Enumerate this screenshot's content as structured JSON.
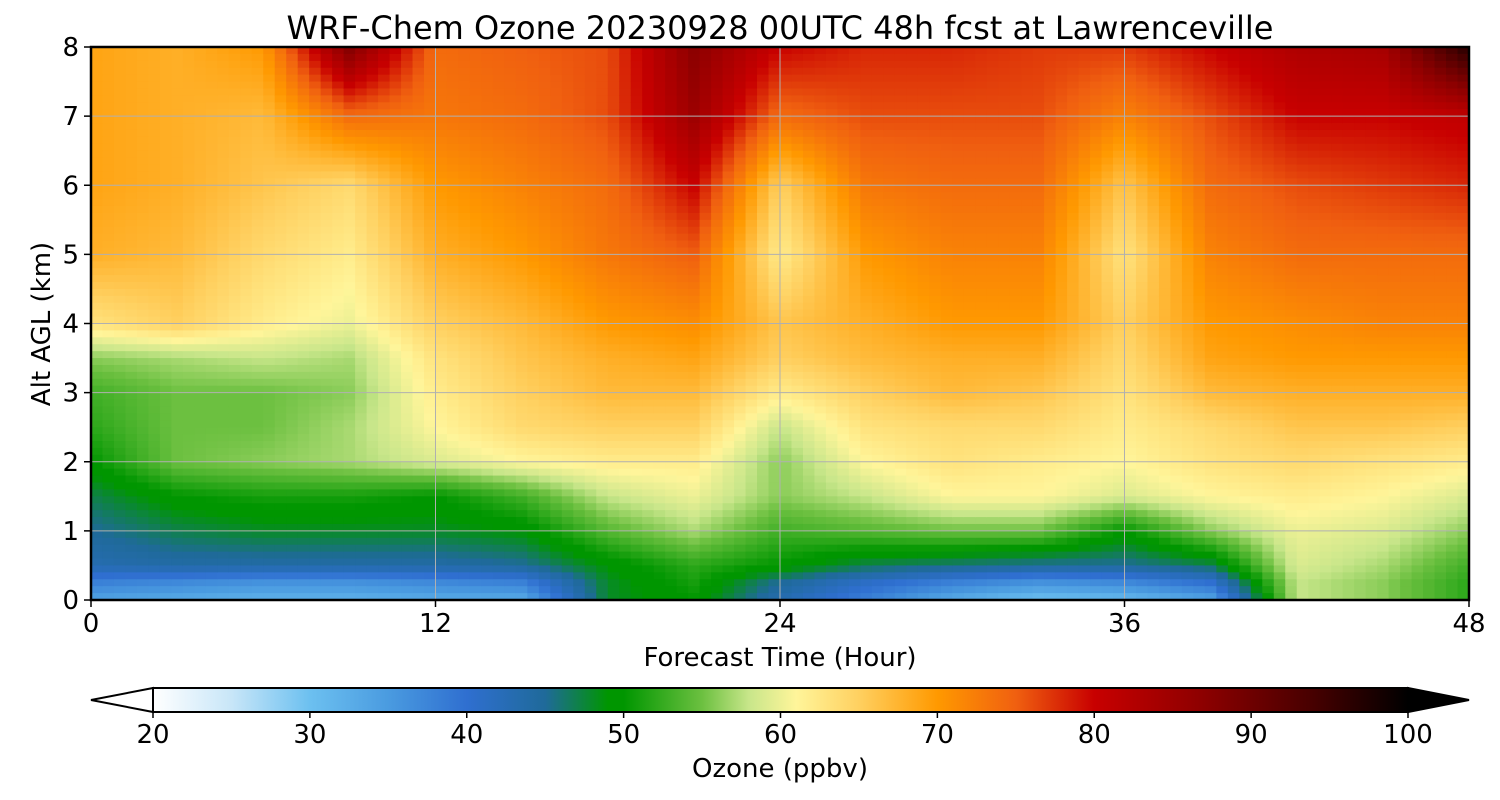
{
  "chart_data": {
    "type": "heatmap",
    "title": "WRF-Chem Ozone  20230928 00UTC 48h fcst at Lawrenceville",
    "xlabel": "Forecast Time (Hour)",
    "ylabel": "Alt AGL (km)",
    "xlim": [
      0,
      48
    ],
    "ylim": [
      0,
      8
    ],
    "xticks": [
      0,
      12,
      24,
      36,
      48
    ],
    "yticks": [
      0,
      1,
      2,
      3,
      4,
      5,
      6,
      7,
      8
    ],
    "grid": true,
    "x": [
      0,
      3,
      6,
      9,
      12,
      15,
      18,
      21,
      24,
      27,
      30,
      33,
      36,
      39,
      42,
      45,
      48
    ],
    "y": [
      0,
      0.25,
      0.5,
      1,
      1.5,
      2,
      2.5,
      3,
      3.5,
      4,
      5,
      6,
      7,
      8
    ],
    "z": [
      [
        34,
        33,
        32,
        32,
        33,
        33,
        48,
        50,
        43,
        38,
        33,
        30,
        31,
        34,
        58,
        56,
        52
      ],
      [
        38,
        37,
        36,
        36,
        37,
        38,
        48,
        51,
        45,
        41,
        38,
        36,
        37,
        40,
        58,
        56,
        52
      ],
      [
        43,
        44,
        44,
        44,
        44,
        45,
        49,
        52,
        50,
        47,
        46,
        45,
        45,
        47,
        59,
        57,
        53
      ],
      [
        45,
        47,
        48,
        48,
        48,
        49,
        54,
        57,
        53,
        54,
        55,
        55,
        50,
        56,
        60,
        59,
        56
      ],
      [
        47,
        50,
        51,
        51,
        50,
        53,
        58,
        60,
        56,
        58,
        61,
        61,
        59,
        61,
        62,
        61,
        59
      ],
      [
        50,
        55,
        56,
        57,
        59,
        61,
        62,
        62,
        56,
        61,
        63,
        62,
        61,
        63,
        64,
        63,
        62
      ],
      [
        52,
        55,
        55,
        57,
        61,
        64,
        65,
        65,
        58,
        63,
        64,
        64,
        62,
        64,
        66,
        66,
        65
      ],
      [
        53,
        55,
        55,
        56,
        62,
        65,
        67,
        67,
        62,
        65,
        67,
        66,
        63,
        67,
        68,
        68,
        68
      ],
      [
        56,
        57,
        58,
        57,
        63,
        66,
        68,
        69,
        65,
        67,
        68,
        68,
        64,
        69,
        70,
        70,
        70
      ],
      [
        63,
        65,
        62,
        60,
        65,
        67,
        70,
        71,
        66,
        68,
        70,
        70,
        65,
        70,
        71,
        72,
        72
      ],
      [
        68,
        67,
        64,
        62,
        68,
        70,
        73,
        75,
        62,
        70,
        72,
        72,
        63,
        72,
        74,
        74,
        74
      ],
      [
        69,
        68,
        66,
        64,
        70,
        72,
        74,
        80,
        65,
        73,
        74,
        74,
        66,
        74,
        76,
        77,
        78
      ],
      [
        69,
        68,
        67,
        74,
        73,
        74,
        76,
        85,
        74,
        76,
        76,
        76,
        72,
        76,
        80,
        80,
        81
      ],
      [
        69,
        68,
        70,
        88,
        74,
        75,
        76,
        87,
        80,
        78,
        78,
        77,
        77,
        80,
        83,
        84,
        97
      ]
    ],
    "colorbar": {
      "label": "Ozone  (ppbv)",
      "min": 20,
      "max": 100,
      "ticks": [
        20,
        30,
        40,
        50,
        60,
        70,
        80,
        90,
        100
      ],
      "extend": "both",
      "colors": [
        [
          20,
          "#ffffff"
        ],
        [
          25,
          "#c8e6f8"
        ],
        [
          30,
          "#6cc0f0"
        ],
        [
          35,
          "#4a9be0"
        ],
        [
          40,
          "#2f6fd0"
        ],
        [
          45,
          "#1f6a9a"
        ],
        [
          49,
          "#009600"
        ],
        [
          50,
          "#009600"
        ],
        [
          55,
          "#6cc040"
        ],
        [
          58,
          "#c8e68a"
        ],
        [
          61,
          "#fff59a"
        ],
        [
          65,
          "#ffd060"
        ],
        [
          70,
          "#ff9900"
        ],
        [
          75,
          "#f06010"
        ],
        [
          80,
          "#c80000"
        ],
        [
          87,
          "#8c0000"
        ],
        [
          94,
          "#460000"
        ],
        [
          100,
          "#000000"
        ]
      ]
    }
  }
}
